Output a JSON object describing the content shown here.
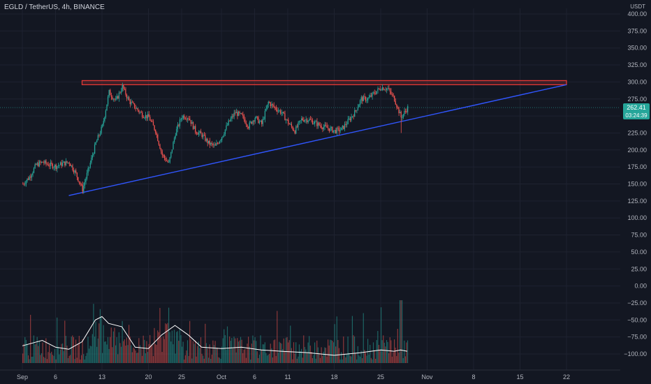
{
  "header": {
    "title": "EGLD / TetherUS, 4h, BINANCE",
    "unit": "USDT"
  },
  "price_badge": {
    "price": "262.41",
    "countdown": "03:24:39"
  },
  "colors": {
    "bg": "#131722",
    "up": "#26a69a",
    "down": "#ef5350",
    "trend": "#3056ff",
    "resistance": "#e53935",
    "volume_ma": "#ffffff"
  },
  "chart_data": {
    "type": "candlestick",
    "title": "EGLD / TetherUS, 4h, BINANCE",
    "price_axis": {
      "ticks": [
        "400.00",
        "375.00",
        "350.00",
        "325.00",
        "300.00",
        "275.00",
        "250.00",
        "225.00",
        "200.00",
        "175.00",
        "150.00",
        "125.00",
        "100.00",
        "75.00",
        "50.00",
        "25.00",
        "0.00",
        "−25.00",
        "−50.00",
        "−75.00",
        "−100.00"
      ],
      "range": [
        -115,
        405
      ]
    },
    "time_axis": {
      "ticks": [
        "Sep",
        "6",
        "13",
        "20",
        "25",
        "Oct",
        "6",
        "11",
        "18",
        "25",
        "Nov",
        "8",
        "15",
        "22"
      ]
    },
    "price_path": [
      [
        "Sep 1",
        150
      ],
      [
        "Sep 2",
        160
      ],
      [
        "Sep 3",
        178
      ],
      [
        "Sep 4",
        182
      ],
      [
        "Sep 5",
        178
      ],
      [
        "Sep 6",
        176
      ],
      [
        "Sep 7",
        180
      ],
      [
        "Sep 8",
        182
      ],
      [
        "Sep 9",
        165
      ],
      [
        "Sep 10",
        142
      ],
      [
        "Sep 11",
        175
      ],
      [
        "Sep 12",
        210
      ],
      [
        "Sep 13",
        235
      ],
      [
        "Sep 14",
        285
      ],
      [
        "Sep 15",
        272
      ],
      [
        "Sep 16",
        293
      ],
      [
        "Sep 17",
        272
      ],
      [
        "Sep 18",
        262
      ],
      [
        "Sep 19",
        252
      ],
      [
        "Sep 20",
        248
      ],
      [
        "Sep 21",
        228
      ],
      [
        "Sep 22",
        193
      ],
      [
        "Sep 23",
        180
      ],
      [
        "Sep 24",
        225
      ],
      [
        "Sep 25",
        250
      ],
      [
        "Sep 26",
        248
      ],
      [
        "Sep 27",
        228
      ],
      [
        "Sep 28",
        222
      ],
      [
        "Sep 29",
        210
      ],
      [
        "Sep 30",
        205
      ],
      [
        "Oct 1",
        220
      ],
      [
        "Oct 2",
        240
      ],
      [
        "Oct 3",
        255
      ],
      [
        "Oct 4",
        250
      ],
      [
        "Oct 5",
        235
      ],
      [
        "Oct 6",
        248
      ],
      [
        "Oct 7",
        238
      ],
      [
        "Oct 8",
        270
      ],
      [
        "Oct 9",
        262
      ],
      [
        "Oct 10",
        255
      ],
      [
        "Oct 11",
        240
      ],
      [
        "Oct 12",
        228
      ],
      [
        "Oct 13",
        245
      ],
      [
        "Oct 14",
        245
      ],
      [
        "Oct 15",
        240
      ],
      [
        "Oct 16",
        235
      ],
      [
        "Oct 17",
        232
      ],
      [
        "Oct 18",
        228
      ],
      [
        "Oct 19",
        230
      ],
      [
        "Oct 20",
        242
      ],
      [
        "Oct 21",
        255
      ],
      [
        "Oct 22",
        275
      ],
      [
        "Oct 23",
        275
      ],
      [
        "Oct 24",
        284
      ],
      [
        "Oct 25",
        292
      ],
      [
        "Oct 26",
        290
      ],
      [
        "Oct 27",
        275
      ],
      [
        "Oct 28",
        248
      ],
      [
        "Oct 29",
        262
      ]
    ],
    "resistance_zone": {
      "from": "Sep 10",
      "to": "Nov 22",
      "low": 296,
      "high": 302
    },
    "trendline": {
      "from": [
        "Sep 8",
        133
      ],
      "to": [
        "Nov 22",
        296
      ]
    },
    "volume_ma_path": [
      [
        "Sep 1",
        -88
      ],
      [
        "Sep 4",
        -80
      ],
      [
        "Sep 6",
        -90
      ],
      [
        "Sep 8",
        -93
      ],
      [
        "Sep 10",
        -82
      ],
      [
        "Sep 12",
        -50
      ],
      [
        "Sep 13",
        -45
      ],
      [
        "Sep 14",
        -55
      ],
      [
        "Sep 16",
        -60
      ],
      [
        "Sep 18",
        -90
      ],
      [
        "Sep 20",
        -92
      ],
      [
        "Sep 22",
        -72
      ],
      [
        "Sep 24",
        -58
      ],
      [
        "Sep 26",
        -72
      ],
      [
        "Sep 28",
        -90
      ],
      [
        "Oct 1",
        -92
      ],
      [
        "Oct 4",
        -90
      ],
      [
        "Oct 7",
        -94
      ],
      [
        "Oct 10",
        -96
      ],
      [
        "Oct 14",
        -98
      ],
      [
        "Oct 18",
        -102
      ],
      [
        "Oct 22",
        -98
      ],
      [
        "Oct 25",
        -94
      ],
      [
        "Oct 27",
        -96
      ],
      [
        "Oct 28",
        -94
      ],
      [
        "Oct 29",
        -96
      ]
    ]
  }
}
